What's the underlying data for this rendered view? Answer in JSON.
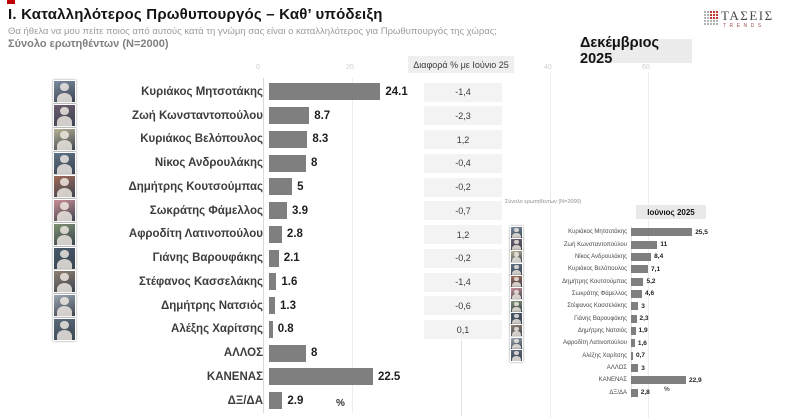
{
  "page": {
    "title": "Ι. Καταλληλότερος  Πρωθυπουργός – Καθ’ υπόδειξη",
    "subtitle": "Θα ήθελα να μου πείτε ποιος από αυτούς κατά τη γνώμη σας είναι ο καταλληλότερος για Πρωθυπουργός της χώρας;",
    "sample_note": "Σύνολο ερωτηθέντων (N=2000)",
    "corner_mark_color": "#c00000"
  },
  "logo": {
    "brand": "ΤΑΣΕΙΣ",
    "sub_brand": "TRENDS",
    "accent_color": "#c0392b"
  },
  "axis_hints": {
    "labels": [
      "0",
      "20",
      "40",
      "60"
    ]
  },
  "diff_panel": {
    "header": "Διαφορά % με Ιούνιο 25",
    "values": [
      "-1,4",
      "-2,3",
      "1,2",
      "-0,4",
      "-0,2",
      "-0,7",
      "1,2",
      "-0,2",
      "-1,4",
      "-0,6",
      "0,1"
    ]
  },
  "chart_data": [
    {
      "type": "bar",
      "orientation": "horizontal",
      "title": "Δεκέμβριος 2025",
      "unit": "%",
      "bar_color": "#7f7f7f",
      "xlim": [
        0,
        60
      ],
      "avatar_rows": 11,
      "categories": [
        "Κυριάκος Μητσοτάκης",
        "Ζωή Κωνσταντοπούλου",
        "Κυριάκος Βελόπουλος",
        "Νίκος Ανδρουλάκης",
        "Δημήτρης Κουτσούμπας",
        "Σωκράτης Φάμελλος",
        "Αφροδίτη Λατινοπούλου",
        "Γιάνης Βαρουφάκης",
        "Στέφανος Κασσελάκης",
        "Δημήτρης Νατσιός",
        "Αλέξης Χαρίτσης",
        "ΑΛΛΟΣ",
        "ΚΑΝΕΝΑΣ",
        "ΔΞ/ΔΑ"
      ],
      "values": [
        24.1,
        8.7,
        8.3,
        8,
        5,
        3.9,
        2.8,
        2.1,
        1.6,
        1.3,
        0.8,
        8,
        22.5,
        2.9
      ],
      "value_labels": [
        "24.1",
        "8.7",
        "8.3",
        "8",
        "5",
        "3.9",
        "2.8",
        "2.1",
        "1.6",
        "1.3",
        "0.8",
        "8",
        "22.5",
        "2.9"
      ]
    },
    {
      "type": "bar",
      "orientation": "horizontal",
      "title": "Ιούνιος 2025",
      "sample_note": "Σύνολο ερωτηθέντων (Ν=2000)",
      "unit": "%",
      "bar_color": "#7f7f7f",
      "avatar_rows": 11,
      "categories": [
        "Κυριάκος Μητσοτάκης",
        "Ζωή Κωνσταντοπούλου",
        "Νίκος Ανδρουλάκης",
        "Κυριάκος Βελόπουλος",
        "Δημήτρης Κουτσούμπας",
        "Σωκράτης Φάμελλος",
        "Στέφανος Κασσελάκης",
        "Γιάνης Βαρουφάκης",
        "Δημήτρης Νατσιός",
        "Αφροδίτη Λατινοπούλου",
        "Αλέξης Χαρίτσης",
        "ΑΛΛΟΣ",
        "ΚΑΝΕΝΑΣ",
        "ΔΞ/ΔΑ"
      ],
      "values": [
        25.5,
        11,
        8.4,
        7.1,
        5.2,
        4.6,
        3,
        2.3,
        1.9,
        1.6,
        0.7,
        3,
        22.9,
        2.8
      ],
      "value_labels": [
        "25,5",
        "11",
        "8,4",
        "7,1",
        "5,2",
        "4,6",
        "3",
        "2,3",
        "1,9",
        "1,6",
        "0,7",
        "3",
        "22,9",
        "2,8"
      ]
    }
  ]
}
